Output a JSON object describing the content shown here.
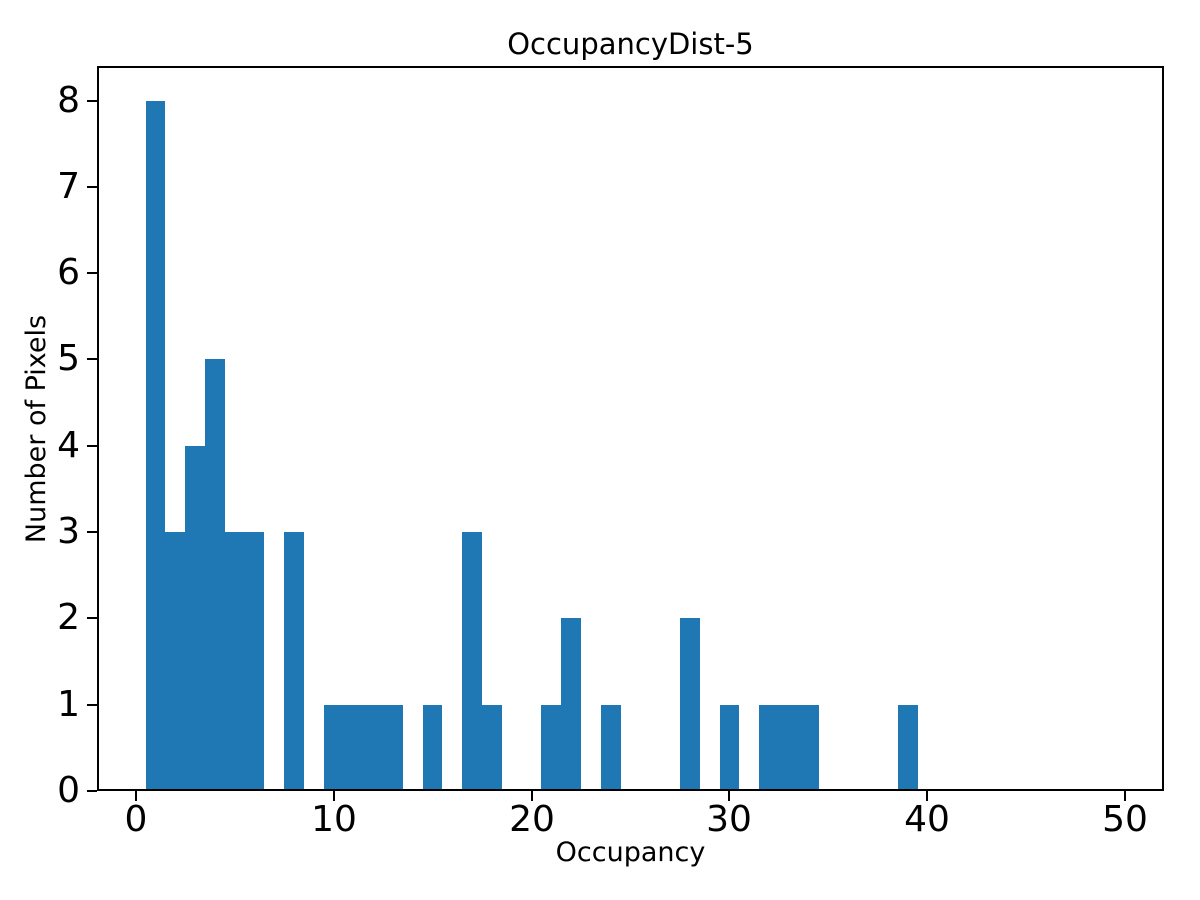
{
  "chart_data": {
    "type": "bar",
    "subtype": "histogram",
    "title": "OccupancyDist-5",
    "xlabel": "Occupancy",
    "ylabel": "Number of Pixels",
    "bin_start": 0.5,
    "bin_width": 1,
    "counts": [
      8,
      3,
      4,
      5,
      3,
      3,
      0,
      3,
      0,
      1,
      1,
      1,
      1,
      0,
      1,
      0,
      3,
      1,
      0,
      0,
      1,
      2,
      0,
      1,
      0,
      0,
      0,
      2,
      0,
      1,
      0,
      1,
      1,
      1,
      0,
      0,
      0,
      0,
      1,
      0,
      0,
      0,
      0,
      0,
      0,
      0,
      0,
      0,
      0
    ],
    "xlim": [
      -1.95,
      51.95
    ],
    "ylim": [
      0,
      8.4
    ],
    "xticks": [
      0,
      10,
      20,
      30,
      40,
      50
    ],
    "yticks": [
      0,
      1,
      2,
      3,
      4,
      5,
      6,
      7,
      8
    ],
    "bar_color": "#1f77b4",
    "axis_color": "#000000",
    "background_color": "#ffffff",
    "grid": false,
    "legend": false
  }
}
